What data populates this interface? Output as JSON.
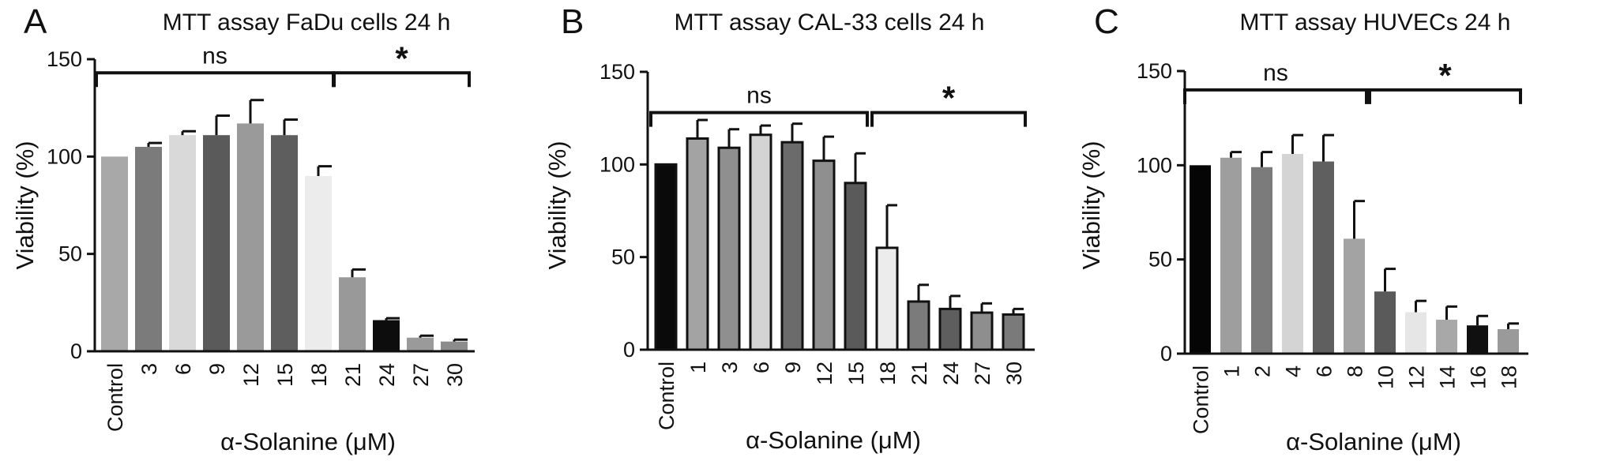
{
  "chart_data": [
    {
      "type": "bar",
      "panel": "A",
      "title": "MTT assay FaDu cells 24 h",
      "xlabel": "α-Solanine (μM)",
      "ylabel": "Viability (%)",
      "ylim": [
        0,
        150
      ],
      "yticks": [
        0,
        50,
        100,
        150
      ],
      "categories": [
        "Control",
        "3",
        "6",
        "9",
        "12",
        "15",
        "18",
        "21",
        "24",
        "27",
        "30"
      ],
      "values": [
        100,
        105,
        111,
        111,
        117,
        111,
        90,
        38,
        16,
        7,
        5
      ],
      "errors": [
        0,
        2,
        2,
        10,
        12,
        8,
        5,
        4,
        1,
        1,
        1
      ],
      "colors": [
        "#a8a8a8",
        "#7b7b7b",
        "#d9d9d9",
        "#5a5a5a",
        "#9a9a9a",
        "#5e5e5e",
        "#ececec",
        "#999999",
        "#0d0d0d",
        "#9a9a9a",
        "#8c8c8c"
      ],
      "bar_outline": false,
      "brackets": [
        {
          "from": 0,
          "to": 6,
          "label": "ns",
          "y": 143
        },
        {
          "from": 7,
          "to": 10,
          "label": "*",
          "y": 143
        }
      ],
      "grid": false
    },
    {
      "type": "bar",
      "panel": "B",
      "title": "MTT assay CAL-33 cells 24 h",
      "xlabel": "α-Solanine (μM)",
      "ylabel": "Viability (%)",
      "ylim": [
        0,
        150
      ],
      "yticks": [
        0,
        50,
        100,
        150
      ],
      "categories": [
        "Control",
        "1",
        "3",
        "6",
        "9",
        "12",
        "15",
        "18",
        "21",
        "24",
        "27",
        "30"
      ],
      "values": [
        100,
        114,
        109,
        116,
        112,
        102,
        90,
        55,
        26,
        22,
        20,
        19
      ],
      "errors": [
        0,
        10,
        10,
        5,
        10,
        13,
        16,
        23,
        9,
        7,
        5,
        3
      ],
      "colors": [
        "#0a0a0a",
        "#a3a3a3",
        "#8f8f8f",
        "#d4d4d4",
        "#6b6b6b",
        "#8f8f8f",
        "#5a5a5a",
        "#ececec",
        "#7b7b7b",
        "#5e5e5e",
        "#8e8e8e",
        "#7a7a7a"
      ],
      "bar_outline": true,
      "brackets": [
        {
          "from": 0,
          "to": 6,
          "label": "ns",
          "y": 128
        },
        {
          "from": 7,
          "to": 11,
          "label": "*",
          "y": 128
        }
      ],
      "grid": false
    },
    {
      "type": "bar",
      "panel": "C",
      "title": "MTT assay HUVECs 24 h",
      "xlabel": "α-Solanine (μM)",
      "ylabel": "Viability (%)",
      "ylim": [
        0,
        150
      ],
      "yticks": [
        0,
        50,
        100,
        150
      ],
      "categories": [
        "Control",
        "1",
        "2",
        "4",
        "6",
        "8",
        "10",
        "12",
        "14",
        "16",
        "18"
      ],
      "values": [
        100,
        104,
        99,
        106,
        102,
        61,
        33,
        22,
        18,
        15,
        13
      ],
      "errors": [
        0,
        3,
        8,
        10,
        14,
        20,
        12,
        6,
        7,
        5,
        3
      ],
      "colors": [
        "#050505",
        "#9e9e9e",
        "#7b7b7b",
        "#d4d4d4",
        "#5f5f5f",
        "#a3a3a3",
        "#5a5a5a",
        "#e6e6e6",
        "#a8a8a8",
        "#101010",
        "#9a9a9a"
      ],
      "bar_outline": false,
      "brackets": [
        {
          "from": 0,
          "to": 5,
          "label": "ns",
          "y": 140
        },
        {
          "from": 6,
          "to": 10,
          "label": "*",
          "y": 140
        }
      ],
      "grid": false
    }
  ]
}
